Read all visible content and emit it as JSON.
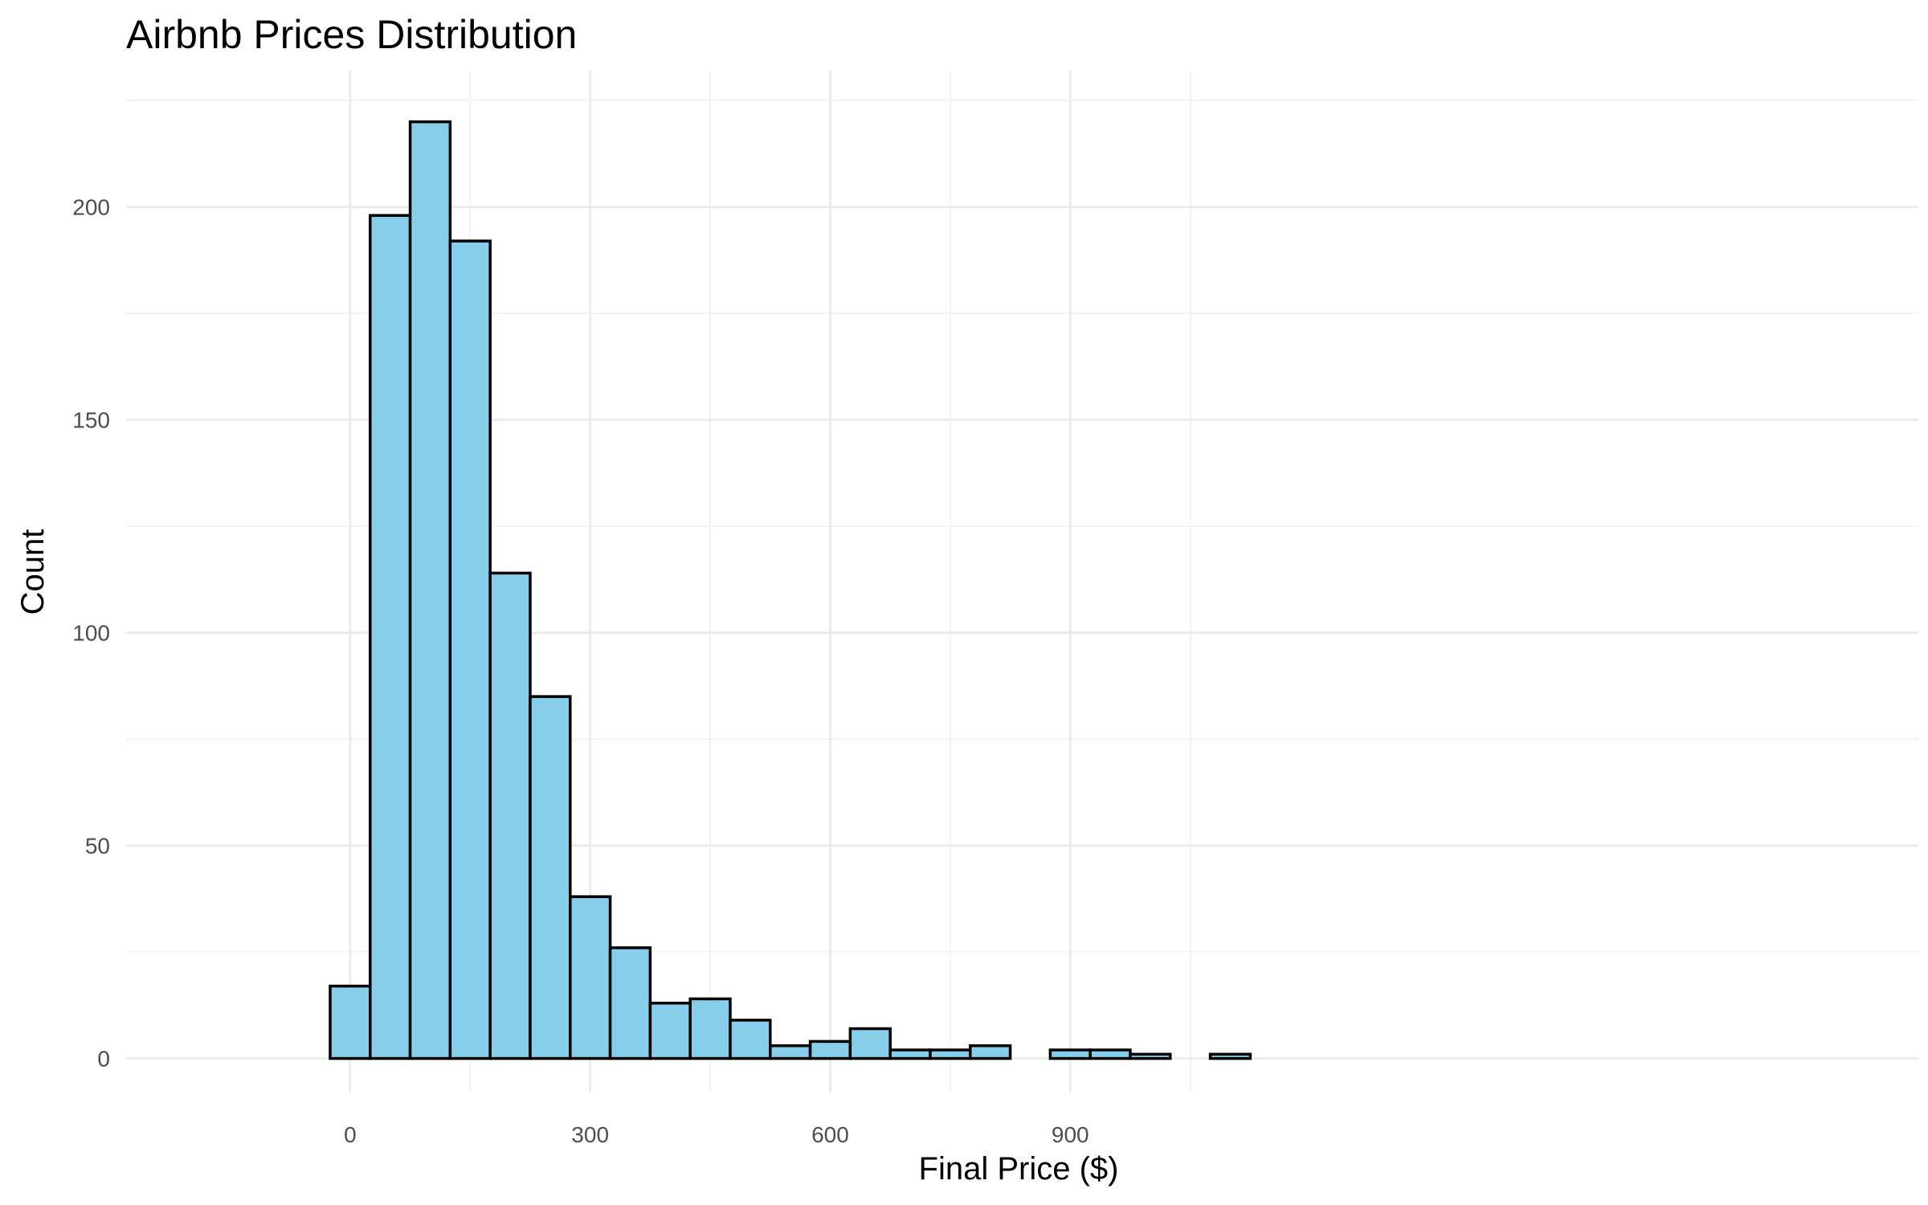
{
  "chart_data": {
    "type": "bar",
    "title": "Airbnb Prices Distribution",
    "xlabel": "Final Price ($)",
    "ylabel": "Count",
    "bin_width": 50,
    "bin_centers": [
      0,
      50,
      100,
      150,
      200,
      250,
      300,
      350,
      400,
      450,
      500,
      550,
      600,
      650,
      700,
      750,
      800,
      850,
      900,
      950,
      1000,
      1050,
      1100
    ],
    "values": [
      17,
      198,
      220,
      192,
      114,
      85,
      38,
      26,
      13,
      14,
      9,
      3,
      4,
      7,
      2,
      2,
      3,
      0,
      2,
      2,
      1,
      0,
      1
    ],
    "xlim": [
      -280,
      1960
    ],
    "ylim": [
      -8,
      232
    ],
    "x_ticks": [
      0,
      300,
      600,
      900
    ],
    "x_tick_labels": [
      "0",
      "300",
      "600",
      "900"
    ],
    "y_ticks": [
      0,
      50,
      100,
      150,
      200
    ],
    "y_tick_labels": [
      "0",
      "50",
      "100",
      "150",
      "200"
    ],
    "x_minor_ticks": [
      150,
      450,
      750,
      1050
    ],
    "y_minor_ticks": [
      25,
      75,
      125,
      175,
      225
    ],
    "grid": true,
    "colors": {
      "bar_fill": "#87CEEB",
      "bar_stroke": "#000000",
      "grid_major": "#EBEBEB",
      "grid_minor": "#F2F2F2",
      "tick_text": "#4D4D4D"
    }
  }
}
